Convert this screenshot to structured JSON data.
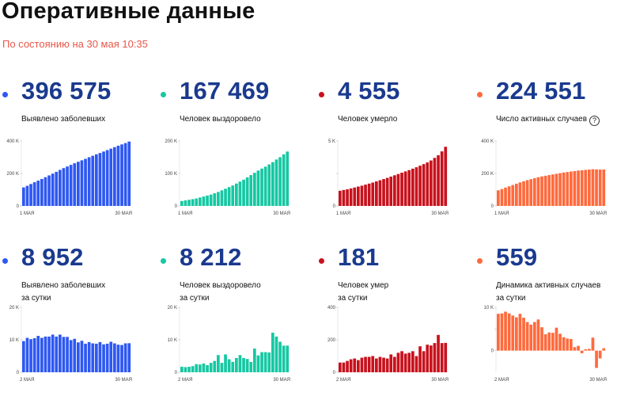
{
  "header": {
    "title": "Оперативные данные",
    "subtitle": "По состоянию на 30 мая 10:35"
  },
  "cards": [
    {
      "value": "396 575",
      "label_line1": "Выявлено заболевших",
      "label_line2": "",
      "help": false,
      "color": "#2e58f2",
      "ymax": 400000,
      "yticks": [
        "400 K",
        "200 K",
        "0"
      ],
      "x_start_label": "1 МАЯ",
      "x_end_label": "30 МАЯ",
      "values": [
        114000,
        124000,
        135000,
        146000,
        156000,
        166000,
        177000,
        188000,
        199000,
        210000,
        222000,
        233000,
        243000,
        253000,
        263000,
        272000,
        281000,
        290000,
        300000,
        309000,
        318000,
        326000,
        335000,
        344000,
        353000,
        362000,
        371000,
        379000,
        387000,
        396575
      ]
    },
    {
      "value": "167 469",
      "label_line1": "Человек выздоровело",
      "label_line2": "",
      "help": false,
      "color": "#16c8a3",
      "ymax": 200000,
      "yticks": [
        "200 K",
        "100 K",
        "0"
      ],
      "x_start_label": "1 МАЯ",
      "x_end_label": "30 МАЯ",
      "values": [
        15000,
        17000,
        19000,
        21000,
        23000,
        26000,
        29000,
        32000,
        35000,
        39000,
        43000,
        48000,
        53000,
        58000,
        63000,
        69000,
        75000,
        81000,
        88000,
        95000,
        102000,
        109000,
        115000,
        121000,
        128000,
        135000,
        143000,
        150000,
        159000,
        167469
      ]
    },
    {
      "value": "4 555",
      "label_line1": "Человек умерло",
      "label_line2": "",
      "help": false,
      "color": "#c8121d",
      "ymax": 5000,
      "yticks": [
        "5 K",
        "",
        "0"
      ],
      "x_start_label": "1 МАЯ",
      "x_end_label": "30 МАЯ",
      "values": [
        1170,
        1230,
        1280,
        1350,
        1420,
        1490,
        1560,
        1640,
        1720,
        1800,
        1890,
        1980,
        2070,
        2160,
        2260,
        2360,
        2460,
        2560,
        2660,
        2760,
        2870,
        2980,
        3100,
        3220,
        3350,
        3500,
        3700,
        3900,
        4200,
        4555
      ]
    },
    {
      "value": "224 551",
      "label_line1": "Число активных случаев",
      "label_line2": "",
      "help": true,
      "help_glyph": "?",
      "color": "#ff6a3d",
      "ymax": 400000,
      "yticks": [
        "400 K",
        "200 K",
        "0"
      ],
      "x_start_label": "1 МАЯ",
      "x_end_label": "30 МАЯ",
      "values": [
        96000,
        104000,
        113000,
        121000,
        129000,
        137000,
        145000,
        152000,
        159000,
        165000,
        171000,
        177000,
        182000,
        186000,
        190000,
        194000,
        198000,
        202000,
        206000,
        209000,
        212000,
        215000,
        218000,
        220000,
        222000,
        224000,
        226000,
        225000,
        224000,
        224551
      ]
    },
    {
      "value": "8 952",
      "label_line1": "Выявлено заболевших",
      "label_line2": "за сутки",
      "help": false,
      "color": "#2e58f2",
      "ymax": 20000,
      "yticks": [
        "20 K",
        "10 K",
        "0"
      ],
      "x_start_label": "2 МАЯ",
      "x_end_label": "30 МАЯ",
      "values": [
        9600,
        10600,
        10200,
        10500,
        11200,
        10600,
        11000,
        11000,
        11600,
        11000,
        11600,
        10900,
        10900,
        9900,
        10300,
        9200,
        9700,
        8800,
        9300,
        8900,
        8800,
        9300,
        8600,
        8800,
        9400,
        8900,
        8500,
        8400,
        8900,
        8952
      ]
    },
    {
      "value": "8 212",
      "label_line1": "Человек выздоровело",
      "label_line2": "за сутки",
      "help": false,
      "color": "#16c8a3",
      "ymax": 20000,
      "yticks": [
        "20 K",
        "10 K",
        "0"
      ],
      "x_start_label": "2 МАЯ",
      "x_end_label": "30 МАЯ",
      "values": [
        1700,
        1600,
        1700,
        1900,
        2500,
        2400,
        2700,
        2200,
        2900,
        3500,
        5300,
        2900,
        5500,
        4000,
        3200,
        4400,
        5300,
        4400,
        4100,
        3200,
        7300,
        5200,
        6200,
        6200,
        6100,
        12200,
        11000,
        9400,
        8200,
        8212
      ]
    },
    {
      "value": "181",
      "label_line1": "Человек умер",
      "label_line2": "за сутки",
      "help": false,
      "color": "#c8121d",
      "ymax": 400,
      "yticks": [
        "400",
        "200",
        "0"
      ],
      "x_start_label": "2 МАЯ",
      "x_end_label": "30 МАЯ",
      "values": [
        60,
        60,
        70,
        80,
        85,
        75,
        90,
        95,
        95,
        100,
        85,
        95,
        90,
        85,
        110,
        95,
        120,
        130,
        115,
        120,
        130,
        100,
        160,
        130,
        170,
        165,
        180,
        230,
        180,
        181
      ]
    },
    {
      "value": "559",
      "label_line1": "Динамика активных случаев",
      "label_line2": "за сутки",
      "help": false,
      "color": "#ff6a3d",
      "ymax": 10000,
      "ymin": -5000,
      "yticks": [
        "10 K",
        "",
        "0"
      ],
      "x_start_label": "2 МАЯ",
      "x_end_label": "30 МАЯ",
      "values": [
        8500,
        8600,
        9000,
        8600,
        8100,
        7700,
        8500,
        7600,
        6600,
        6000,
        6600,
        7200,
        5400,
        3800,
        4200,
        4100,
        5300,
        3900,
        3100,
        2800,
        2700,
        800,
        1100,
        -600,
        300,
        400,
        3000,
        -4000,
        -1800,
        559
      ]
    }
  ]
}
